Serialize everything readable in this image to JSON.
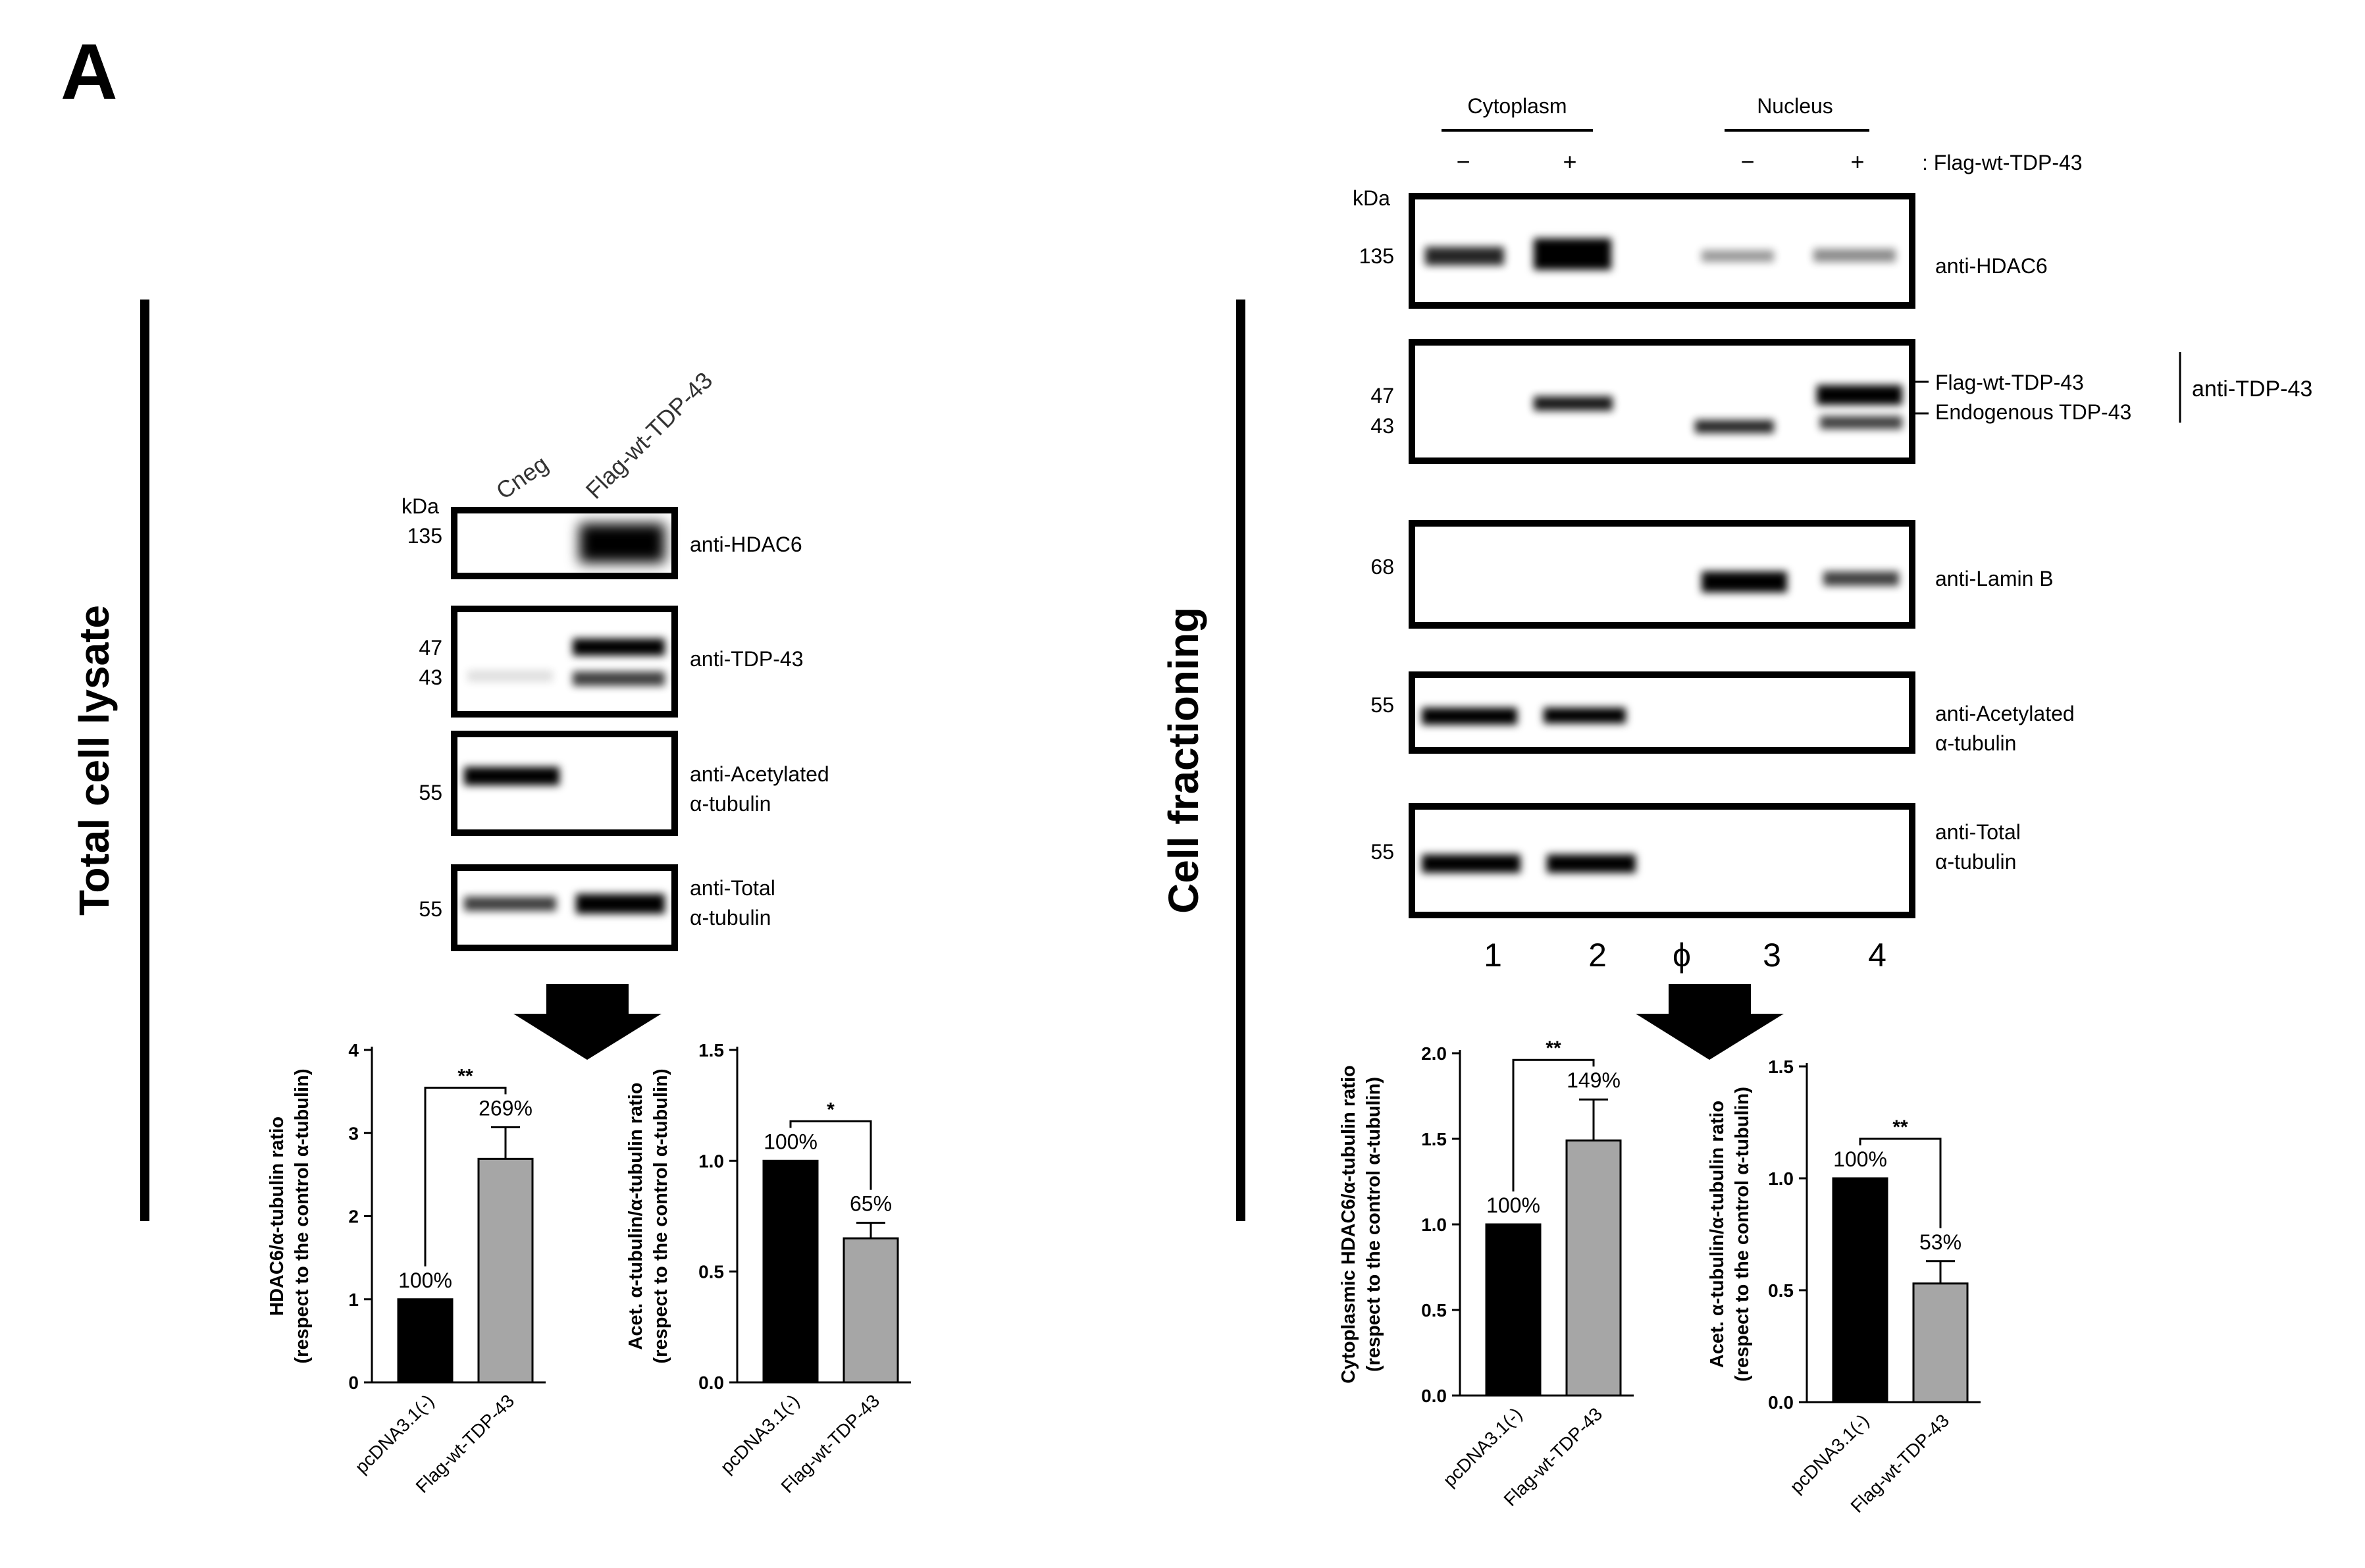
{
  "panel_letter": "A",
  "left": {
    "section_label": "Total cell lysate",
    "lanes": [
      "Cneg",
      "Flag-wt-TDP-43"
    ],
    "kda_label": "kDa",
    "blots": [
      {
        "markers": [
          "135"
        ],
        "antibody": [
          "anti-HDAC6"
        ]
      },
      {
        "markers": [
          "47",
          "43"
        ],
        "antibody": [
          "anti-TDP-43"
        ]
      },
      {
        "markers": [
          "55"
        ],
        "antibody": [
          "anti-Acetylated",
          "α-tubulin"
        ]
      },
      {
        "markers": [
          "55"
        ],
        "antibody": [
          "anti-Total",
          "α-tubulin"
        ]
      }
    ]
  },
  "right": {
    "section_label": "Cell fractioning",
    "fractions": [
      "Cytoplasm",
      "Nucleus"
    ],
    "signs": [
      "−",
      "+",
      "−",
      "+"
    ],
    "treatment_label": ": Flag-wt-TDP-43",
    "kda_label": "kDa",
    "blots": [
      {
        "markers": [
          "135"
        ],
        "antibody": [
          "anti-HDAC6"
        ]
      },
      {
        "markers": [
          "47",
          "43"
        ],
        "antibody": [],
        "band_labels": [
          "Flag-wt-TDP-43",
          "Endogenous TDP-43"
        ],
        "group_label": "anti-TDP-43"
      },
      {
        "markers": [
          "68"
        ],
        "antibody": [
          "anti-Lamin B"
        ]
      },
      {
        "markers": [
          "55"
        ],
        "antibody": [
          "anti-Acetylated",
          "α-tubulin"
        ]
      },
      {
        "markers": [
          "55"
        ],
        "antibody": [
          "anti-Total",
          "α-tubulin"
        ]
      }
    ],
    "lane_numbers": [
      "1",
      "2",
      "ϕ",
      "3",
      "4"
    ]
  },
  "chart_data": [
    {
      "type": "bar",
      "categories": [
        "pcDNA3.1(-)",
        "Flag-wt-TDP-43"
      ],
      "values": [
        1.0,
        2.69
      ],
      "errors": [
        0,
        0.38
      ],
      "data_labels": [
        "100%",
        "269%"
      ],
      "ylabel": [
        "HDAC6/α-tubulin ratio",
        "(respect to the control α-tubulin)"
      ],
      "ylim": [
        0,
        4
      ],
      "ticks": [
        "0",
        "1",
        "2",
        "3",
        "4"
      ],
      "significance": "**",
      "colors": [
        "#000000",
        "#a6a6a6"
      ]
    },
    {
      "type": "bar",
      "categories": [
        "pcDNA3.1(-)",
        "Flag-wt-TDP-43"
      ],
      "values": [
        1.0,
        0.65
      ],
      "errors": [
        0,
        0.07
      ],
      "data_labels": [
        "100%",
        "65%"
      ],
      "ylabel": [
        "Acet. α-tubulin/α-tubulin ratio",
        "(respect to the control α-tubulin)"
      ],
      "ylim": [
        0,
        1.5
      ],
      "ticks": [
        "0.0",
        "0.5",
        "1.0",
        "1.5"
      ],
      "significance": "*",
      "colors": [
        "#000000",
        "#a6a6a6"
      ]
    },
    {
      "type": "bar",
      "categories": [
        "pcDNA3.1(-)",
        "Flag-wt-TDP-43"
      ],
      "values": [
        1.0,
        1.49
      ],
      "errors": [
        0,
        0.24
      ],
      "data_labels": [
        "100%",
        "149%"
      ],
      "ylabel": [
        "Cytoplasmic HDAC6/α-tubulin ratio",
        "(respect to the control α-tubulin)"
      ],
      "ylim": [
        0,
        2
      ],
      "ticks": [
        "0.0",
        "0.5",
        "1.0",
        "1.5",
        "2.0"
      ],
      "significance": "**",
      "colors": [
        "#000000",
        "#a6a6a6"
      ]
    },
    {
      "type": "bar",
      "categories": [
        "pcDNA3.1(-)",
        "Flag-wt-TDP-43"
      ],
      "values": [
        1.0,
        0.53
      ],
      "errors": [
        0,
        0.1
      ],
      "data_labels": [
        "100%",
        "53%"
      ],
      "ylabel": [
        "Acet. α-tubulin/α-tubulin ratio",
        "(respect to the control α-tubulin)"
      ],
      "ylim": [
        0,
        1.5
      ],
      "ticks": [
        "0.0",
        "0.5",
        "1.0",
        "1.5"
      ],
      "significance": "**",
      "colors": [
        "#000000",
        "#a6a6a6"
      ]
    }
  ]
}
